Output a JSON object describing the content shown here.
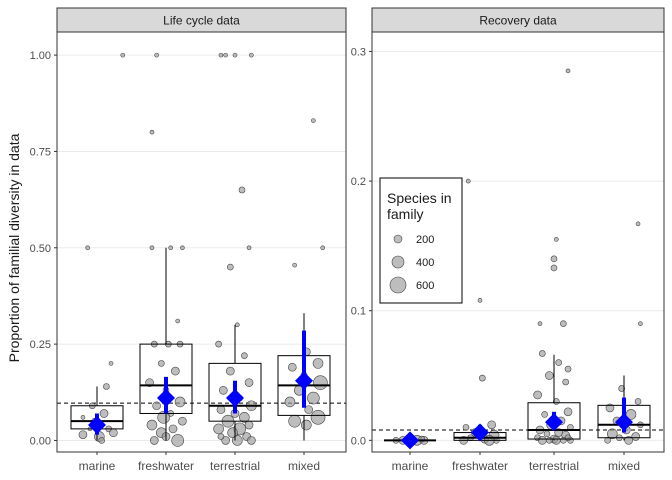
{
  "ylabel": "Proportion of familial diversity in data",
  "legend": {
    "title_line1": "Species in",
    "title_line2": "family",
    "sizes": [
      200,
      400,
      600
    ]
  },
  "colors": {
    "mean_marker": "#0000ff",
    "point_fill": "#9a9a9a",
    "strip_fill": "#d9d9d9",
    "reference_line": "#000000"
  },
  "chart_data": [
    {
      "type": "box",
      "strip_label": "Life cycle data",
      "categories": [
        "marine",
        "freshwater",
        "terrestrial",
        "mixed"
      ],
      "ylim": [
        -0.03,
        1.06
      ],
      "yticks": [
        0,
        0.25,
        0.5,
        0.75,
        1
      ],
      "ytick_labels": [
        "0.00",
        "0.25",
        "0.50",
        "0.75",
        "1.00"
      ],
      "reference_line": 0.097,
      "boxes": [
        {
          "q1": 0.03,
          "median": 0.05,
          "q3": 0.09,
          "whisker_low": 0.0,
          "whisker_high": 0.14
        },
        {
          "q1": 0.07,
          "median": 0.143,
          "q3": 0.25,
          "whisker_low": 0.0,
          "whisker_high": 0.5
        },
        {
          "q1": 0.05,
          "median": 0.09,
          "q3": 0.2,
          "whisker_low": 0.0,
          "whisker_high": 0.3
        },
        {
          "q1": 0.065,
          "median": 0.143,
          "q3": 0.22,
          "whisker_low": 0.0,
          "whisker_high": 0.33
        }
      ],
      "means": [
        {
          "mean": 0.04,
          "ci_low": 0.015,
          "ci_high": 0.07
        },
        {
          "mean": 0.11,
          "ci_low": 0.07,
          "ci_high": 0.165
        },
        {
          "mean": 0.11,
          "ci_low": 0.07,
          "ci_high": 0.155
        },
        {
          "mean": 0.155,
          "ci_low": 0.085,
          "ci_high": 0.285
        }
      ],
      "points": [
        [
          [
            0.55,
            1.0,
            2
          ],
          [
            -0.2,
            0.5,
            2
          ],
          [
            0.3,
            0.2,
            2
          ],
          [
            0.2,
            0.14,
            3
          ],
          [
            -0.1,
            0.09,
            3
          ],
          [
            0.15,
            0.07,
            4
          ],
          [
            -0.3,
            0.06,
            2
          ],
          [
            -0.05,
            0.05,
            3
          ],
          [
            0.25,
            0.03,
            3
          ],
          [
            -0.3,
            0.015,
            4
          ],
          [
            0.05,
            0.01,
            5
          ],
          [
            0.35,
            0.02,
            4
          ],
          [
            0.1,
            0.0,
            3
          ],
          [
            -0.15,
            0.03,
            2
          ]
        ],
        [
          [
            -0.2,
            1.0,
            2
          ],
          [
            -0.3,
            0.8,
            2
          ],
          [
            0.1,
            0.5,
            2
          ],
          [
            -0.3,
            0.5,
            2
          ],
          [
            0.35,
            0.5,
            2
          ],
          [
            0.25,
            0.31,
            2
          ],
          [
            -0.25,
            0.25,
            3
          ],
          [
            0.05,
            0.25,
            3
          ],
          [
            0.3,
            0.25,
            3
          ],
          [
            -0.1,
            0.2,
            3
          ],
          [
            0.2,
            0.18,
            4
          ],
          [
            -0.35,
            0.15,
            4
          ],
          [
            0.0,
            0.13,
            3
          ],
          [
            0.3,
            0.1,
            5
          ],
          [
            -0.2,
            0.09,
            4
          ],
          [
            0.1,
            0.07,
            3
          ],
          [
            -0.05,
            0.06,
            6
          ],
          [
            0.35,
            0.05,
            4
          ],
          [
            -0.3,
            0.04,
            5
          ],
          [
            0.15,
            0.03,
            4
          ],
          [
            -0.1,
            0.02,
            5
          ],
          [
            0.25,
            0.0,
            6
          ],
          [
            0.0,
            0.01,
            4
          ],
          [
            -0.25,
            0.0,
            4
          ]
        ],
        [
          [
            -0.3,
            1.0,
            2
          ],
          [
            -0.2,
            1.0,
            2
          ],
          [
            0.0,
            1.0,
            2
          ],
          [
            0.35,
            1.0,
            2
          ],
          [
            0.15,
            0.65,
            3
          ],
          [
            0.3,
            0.5,
            2
          ],
          [
            -0.1,
            0.45,
            3
          ],
          [
            0.05,
            0.3,
            2
          ],
          [
            -0.35,
            0.25,
            3
          ],
          [
            0.2,
            0.22,
            3
          ],
          [
            -0.1,
            0.18,
            4
          ],
          [
            0.3,
            0.15,
            4
          ],
          [
            -0.25,
            0.13,
            4
          ],
          [
            0.1,
            0.11,
            3
          ],
          [
            0.35,
            0.09,
            5
          ],
          [
            -0.3,
            0.08,
            4
          ],
          [
            0.0,
            0.07,
            4
          ],
          [
            0.2,
            0.06,
            5
          ],
          [
            -0.15,
            0.05,
            6
          ],
          [
            0.3,
            0.04,
            4
          ],
          [
            -0.35,
            0.03,
            5
          ],
          [
            0.1,
            0.03,
            6
          ],
          [
            -0.05,
            0.02,
            5
          ],
          [
            0.25,
            0.01,
            4
          ],
          [
            -0.2,
            0.0,
            4
          ],
          [
            0.05,
            0.0,
            5
          ],
          [
            0.35,
            0.0,
            4
          ],
          [
            -0.3,
            0.01,
            3
          ]
        ],
        [
          [
            0.2,
            0.83,
            2
          ],
          [
            -0.2,
            0.455,
            2
          ],
          [
            0.4,
            0.5,
            2
          ],
          [
            0.05,
            0.23,
            4
          ],
          [
            0.3,
            0.2,
            5
          ],
          [
            -0.25,
            0.19,
            4
          ],
          [
            0.0,
            0.17,
            3
          ],
          [
            0.35,
            0.15,
            7
          ],
          [
            -0.1,
            0.13,
            5
          ],
          [
            0.2,
            0.11,
            6
          ],
          [
            -0.3,
            0.1,
            5
          ],
          [
            0.1,
            0.08,
            4
          ],
          [
            0.3,
            0.06,
            7
          ],
          [
            -0.2,
            0.05,
            6
          ],
          [
            0.05,
            0.04,
            5
          ]
        ]
      ]
    },
    {
      "type": "box",
      "strip_label": "Recovery data",
      "categories": [
        "marine",
        "freshwater",
        "terrestrial",
        "mixed"
      ],
      "ylim": [
        -0.009,
        0.315
      ],
      "yticks": [
        0,
        0.1,
        0.2,
        0.3
      ],
      "ytick_labels": [
        "0.0",
        "0.1",
        "0.2",
        "0.3"
      ],
      "reference_line": 0.008,
      "boxes": [
        {
          "q1": 0.0,
          "median": 0.0,
          "q3": 0.0,
          "whisker_low": 0.0,
          "whisker_high": 0.0
        },
        {
          "q1": 0.0,
          "median": 0.002,
          "q3": 0.006,
          "whisker_low": 0.0,
          "whisker_high": 0.01
        },
        {
          "q1": 0.001,
          "median": 0.008,
          "q3": 0.029,
          "whisker_low": 0.0,
          "whisker_high": 0.066
        },
        {
          "q1": 0.002,
          "median": 0.012,
          "q3": 0.027,
          "whisker_low": 0.0,
          "whisker_high": 0.05
        }
      ],
      "means": [
        {
          "mean": 0.0,
          "ci_low": 0.0,
          "ci_high": 0.001
        },
        {
          "mean": 0.006,
          "ci_low": 0.001,
          "ci_high": 0.012
        },
        {
          "mean": 0.014,
          "ci_low": 0.008,
          "ci_high": 0.022
        },
        {
          "mean": 0.014,
          "ci_low": 0.006,
          "ci_high": 0.033
        }
      ],
      "points": [
        [
          [
            -0.3,
            0.0,
            3
          ],
          [
            -0.15,
            0.0,
            4
          ],
          [
            0.0,
            0.0,
            3
          ],
          [
            0.15,
            0.0,
            5
          ],
          [
            0.3,
            0.0,
            4
          ],
          [
            -0.05,
            0.001,
            3
          ],
          [
            0.25,
            0.001,
            3
          ]
        ],
        [
          [
            -0.25,
            0.2,
            2
          ],
          [
            0.0,
            0.108,
            2
          ],
          [
            0.05,
            0.048,
            3
          ],
          [
            -0.3,
            0.01,
            3
          ],
          [
            0.25,
            0.012,
            4
          ],
          [
            -0.1,
            0.006,
            4
          ],
          [
            0.3,
            0.004,
            5
          ],
          [
            -0.2,
            0.002,
            3
          ],
          [
            0.1,
            0.001,
            4
          ],
          [
            0.35,
            0.0,
            3
          ],
          [
            -0.35,
            0.0,
            4
          ],
          [
            0.2,
            0.0,
            5
          ]
        ],
        [
          [
            0.3,
            0.285,
            2
          ],
          [
            0.05,
            0.155,
            2
          ],
          [
            0.0,
            0.14,
            3
          ],
          [
            0.0,
            0.133,
            3
          ],
          [
            0.2,
            0.09,
            3
          ],
          [
            -0.3,
            0.09,
            2
          ],
          [
            -0.25,
            0.067,
            3
          ],
          [
            0.1,
            0.06,
            3
          ],
          [
            0.3,
            0.055,
            3
          ],
          [
            -0.1,
            0.05,
            4
          ],
          [
            0.25,
            0.045,
            3
          ],
          [
            -0.35,
            0.035,
            4
          ],
          [
            0.05,
            0.03,
            3
          ],
          [
            0.3,
            0.022,
            4
          ],
          [
            -0.2,
            0.02,
            3
          ],
          [
            0.15,
            0.015,
            4
          ],
          [
            -0.05,
            0.012,
            5
          ],
          [
            0.35,
            0.01,
            3
          ],
          [
            -0.3,
            0.008,
            4
          ],
          [
            0.1,
            0.006,
            4
          ],
          [
            -0.15,
            0.005,
            3
          ],
          [
            0.25,
            0.004,
            4
          ],
          [
            -0.35,
            0.002,
            3
          ],
          [
            0.0,
            0.001,
            4
          ],
          [
            0.2,
            0.0,
            3
          ],
          [
            -0.25,
            0.0,
            4
          ],
          [
            0.35,
            0.0,
            3
          ],
          [
            -0.1,
            0.0,
            3
          ],
          [
            0.05,
            0.0,
            4
          ],
          [
            0.3,
            0.002,
            3
          ]
        ],
        [
          [
            0.3,
            0.167,
            2
          ],
          [
            0.35,
            0.09,
            2
          ],
          [
            -0.05,
            0.04,
            3
          ],
          [
            0.3,
            0.03,
            3
          ],
          [
            -0.3,
            0.025,
            4
          ],
          [
            0.15,
            0.02,
            5
          ],
          [
            -0.15,
            0.015,
            4
          ],
          [
            0.35,
            0.012,
            3
          ],
          [
            0.05,
            0.008,
            4
          ],
          [
            -0.25,
            0.005,
            5
          ],
          [
            0.25,
            0.003,
            4
          ],
          [
            -0.1,
            0.002,
            3
          ],
          [
            0.1,
            0.0,
            4
          ],
          [
            -0.35,
            0.0,
            3
          ]
        ]
      ]
    }
  ]
}
